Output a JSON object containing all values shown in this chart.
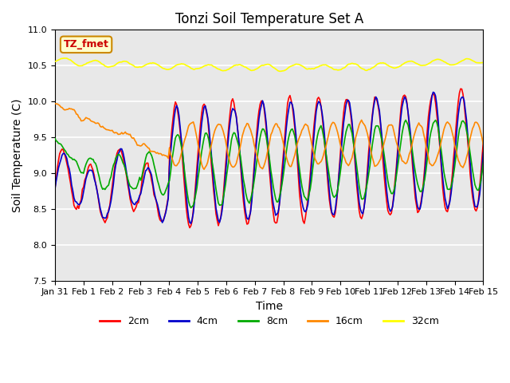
{
  "title": "Tonzi Soil Temperature Set A",
  "xlabel": "Time",
  "ylabel": "Soil Temperature (C)",
  "ylim": [
    7.5,
    11.0
  ],
  "bg_color": "#e8e8e8",
  "annotation_text": "TZ_fmet",
  "annotation_bg": "#ffffcc",
  "annotation_border": "#cc8800",
  "series_colors": {
    "2cm": "#ff0000",
    "4cm": "#0000cc",
    "8cm": "#00aa00",
    "16cm": "#ff8800",
    "32cm": "#ffff00"
  },
  "legend_labels": [
    "2cm",
    "4cm",
    "8cm",
    "16cm",
    "32cm"
  ],
  "xtick_labels": [
    "Jan 31",
    "Feb 1",
    "Feb 2",
    "Feb 3",
    "Feb 4",
    "Feb 5",
    "Feb 6",
    "Feb 7",
    "Feb 8",
    "Feb 9",
    "Feb 10",
    "Feb 11",
    "Feb 12",
    "Feb 13",
    "Feb 14",
    "Feb 15"
  ],
  "num_days": 15,
  "points_per_day": 24
}
